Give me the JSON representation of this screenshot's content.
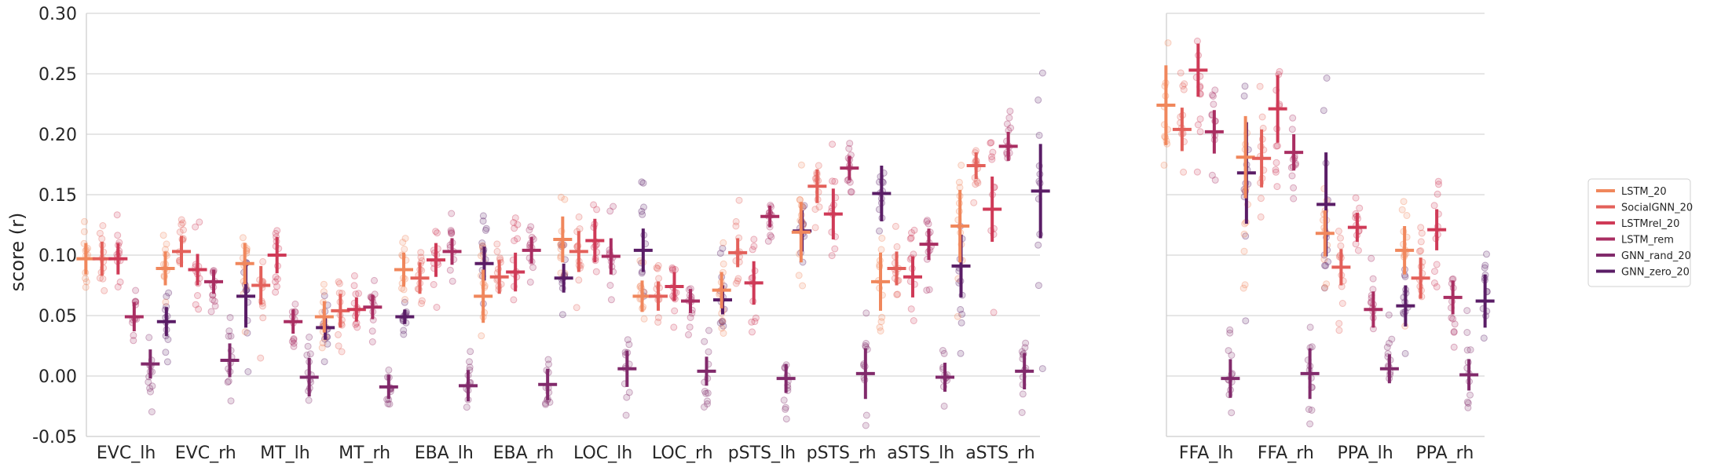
{
  "chart_data": {
    "type": "scatter",
    "ylabel": "score (r)",
    "ylim": [
      -0.05,
      0.3
    ],
    "yticks": [
      "-0.05",
      "0.00",
      "0.05",
      "0.10",
      "0.15",
      "0.20",
      "0.25",
      "0.30"
    ],
    "yticks_values": [
      -0.05,
      0.0,
      0.05,
      0.1,
      0.15,
      0.2,
      0.25,
      0.3
    ],
    "grid": "horizontal",
    "legend_position": "right",
    "series": [
      {
        "name": "LSTM_20",
        "color": "#f0875c"
      },
      {
        "name": "SocialGNN_20",
        "color": "#e3605a"
      },
      {
        "name": "LSTMrel_20",
        "color": "#cf3a57"
      },
      {
        "name": "LSTM_rem",
        "color": "#a92e62"
      },
      {
        "name": "GNN_rand_20",
        "color": "#812a6b"
      },
      {
        "name": "GNN_zero_20",
        "color": "#5a1d66"
      }
    ],
    "panels": [
      {
        "categories": [
          "EVC_lh",
          "EVC_rh",
          "MT_lh",
          "MT_rh",
          "EBA_lh",
          "EBA_rh",
          "LOC_lh",
          "LOC_rh",
          "pSTS_lh",
          "pSTS_rh",
          "aSTS_lh",
          "aSTS_rh"
        ],
        "means": [
          [
            0.097,
            0.097,
            0.097,
            0.049,
            0.01,
            0.045
          ],
          [
            0.089,
            0.103,
            0.088,
            0.078,
            0.013,
            0.066
          ],
          [
            0.093,
            0.075,
            0.1,
            0.045,
            -0.001,
            0.04
          ],
          [
            0.049,
            0.054,
            0.055,
            0.057,
            -0.009,
            0.049
          ],
          [
            0.088,
            0.081,
            0.096,
            0.103,
            -0.008,
            0.093
          ],
          [
            0.066,
            0.082,
            0.086,
            0.104,
            -0.007,
            0.081
          ],
          [
            0.113,
            0.103,
            0.112,
            0.099,
            0.006,
            0.104
          ],
          [
            0.066,
            0.066,
            0.074,
            0.062,
            0.004,
            0.063
          ],
          [
            0.071,
            0.102,
            0.077,
            0.132,
            -0.002,
            0.12
          ],
          [
            0.119,
            0.157,
            0.134,
            0.172,
            0.002,
            0.151
          ],
          [
            0.078,
            0.089,
            0.082,
            0.109,
            -0.001,
            0.091
          ],
          [
            0.124,
            0.174,
            0.138,
            0.19,
            0.004,
            0.153
          ]
        ],
        "errors": [
          [
            0.013,
            0.014,
            0.013,
            0.012,
            0.012,
            0.012
          ],
          [
            0.014,
            0.013,
            0.013,
            0.01,
            0.014,
            0.026
          ],
          [
            0.017,
            0.016,
            0.015,
            0.01,
            0.016,
            0.01
          ],
          [
            0.013,
            0.014,
            0.01,
            0.01,
            0.01,
            0.006
          ],
          [
            0.014,
            0.013,
            0.014,
            0.011,
            0.013,
            0.014
          ],
          [
            0.022,
            0.014,
            0.016,
            0.011,
            0.013,
            0.012
          ],
          [
            0.019,
            0.017,
            0.018,
            0.015,
            0.015,
            0.018
          ],
          [
            0.013,
            0.012,
            0.012,
            0.01,
            0.012,
            0.012
          ],
          [
            0.015,
            0.012,
            0.018,
            0.009,
            0.012,
            0.017
          ],
          [
            0.025,
            0.014,
            0.021,
            0.01,
            0.021,
            0.023
          ],
          [
            0.024,
            0.014,
            0.017,
            0.013,
            0.012,
            0.026
          ],
          [
            0.03,
            0.011,
            0.027,
            0.012,
            0.015,
            0.039
          ]
        ]
      },
      {
        "categories": [
          "FFA_lh",
          "FFA_rh",
          "PPA_lh",
          "PPA_rh"
        ],
        "means": [
          [
            0.224,
            0.204,
            0.253,
            0.202,
            -0.002,
            0.168
          ],
          [
            0.181,
            0.18,
            0.221,
            0.185,
            0.002,
            0.142
          ],
          [
            0.118,
            0.09,
            0.123,
            0.055,
            0.006,
            0.058
          ],
          [
            0.104,
            0.081,
            0.121,
            0.065,
            0.001,
            0.062
          ]
        ],
        "errors": [
          [
            0.033,
            0.018,
            0.022,
            0.018,
            0.016,
            0.042
          ],
          [
            0.034,
            0.024,
            0.028,
            0.015,
            0.021,
            0.043
          ],
          [
            0.019,
            0.015,
            0.012,
            0.015,
            0.012,
            0.017
          ],
          [
            0.02,
            0.017,
            0.017,
            0.014,
            0.013,
            0.022
          ]
        ]
      }
    ]
  }
}
